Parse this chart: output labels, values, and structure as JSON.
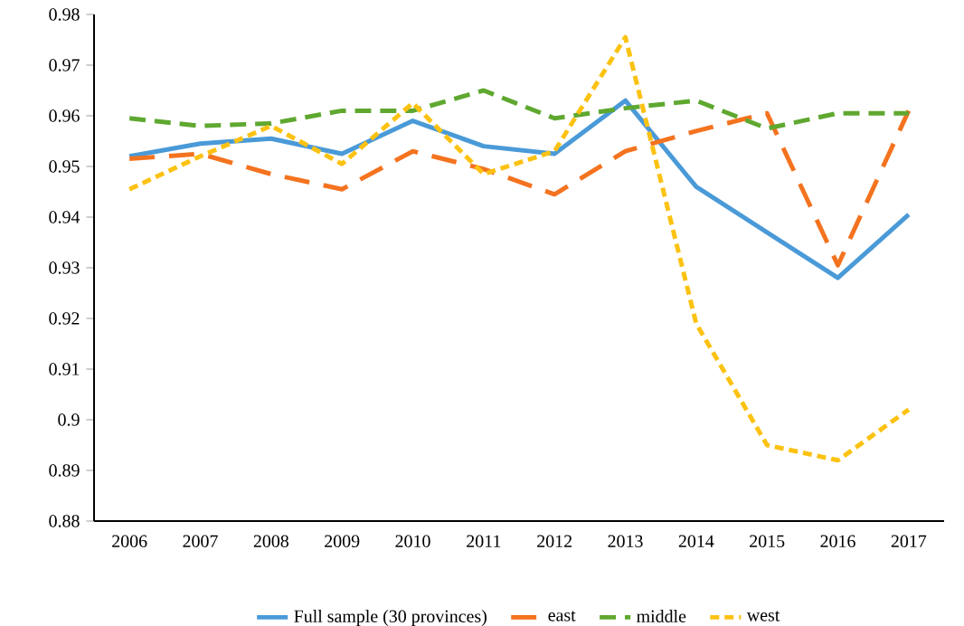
{
  "chart_data": {
    "type": "line",
    "categories": [
      "2006",
      "2007",
      "2008",
      "2009",
      "2010",
      "2011",
      "2012",
      "2013",
      "2014",
      "2015",
      "2016",
      "2017"
    ],
    "ylim": [
      0.88,
      0.98
    ],
    "yticks": [
      0.88,
      0.89,
      0.9,
      0.91,
      0.92,
      0.93,
      0.94,
      0.95,
      0.96,
      0.97,
      0.98
    ],
    "legend": "bottom",
    "grid": false,
    "series": [
      {
        "name": "Full sample (30 provinces)",
        "color": "#4a9ad8",
        "line_style": "solid",
        "values": [
          0.952,
          0.9545,
          0.9555,
          0.9525,
          0.959,
          0.954,
          0.9525,
          0.963,
          0.946,
          0.937,
          0.928,
          0.9405
        ]
      },
      {
        "name": "east",
        "color": "#f4731f",
        "line_style": "dashed",
        "values": [
          0.9515,
          0.9525,
          0.9485,
          0.9455,
          0.953,
          0.9495,
          0.9445,
          0.953,
          0.957,
          0.9605,
          0.9305,
          0.961
        ]
      },
      {
        "name": "middle",
        "color": "#5fa830",
        "line_style": "dashed",
        "values": [
          0.9595,
          0.958,
          0.9585,
          0.961,
          0.961,
          0.965,
          0.9595,
          0.9615,
          0.963,
          0.9575,
          0.9605,
          0.9605
        ]
      },
      {
        "name": "west",
        "color": "#fcc212",
        "line_style": "dashed",
        "values": [
          0.9455,
          0.952,
          0.958,
          0.9505,
          0.9625,
          0.9485,
          0.953,
          0.9755,
          0.919,
          0.895,
          0.892,
          0.902
        ]
      }
    ]
  }
}
